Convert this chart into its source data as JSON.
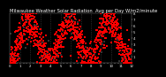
{
  "title": "Milwaukee Weather Solar Radiation",
  "subtitle": "Avg per Day W/m2/minute",
  "background_color": "#000000",
  "plot_bg_color": "#000000",
  "dot_color_main": "#ff0000",
  "dot_color_secondary": "#333333",
  "ylim": [
    0,
    8
  ],
  "title_fontsize": 3.8,
  "tick_fontsize": 2.8,
  "grid_color": "#666666",
  "n_years": 3,
  "n_vlines": 11,
  "yticks": [
    1,
    2,
    3,
    4,
    5,
    6,
    7,
    8
  ]
}
